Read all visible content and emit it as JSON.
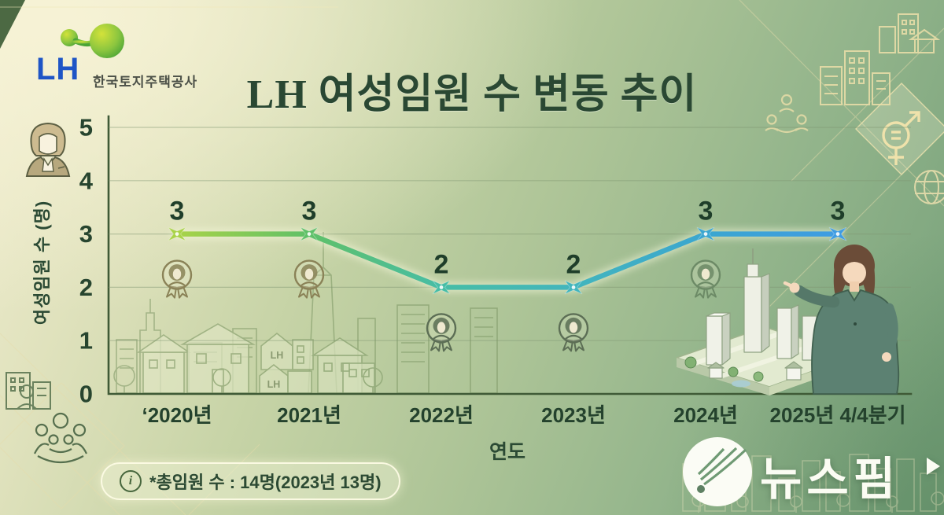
{
  "header": {
    "logo_text": "LH",
    "company_name": "한국토지주택공사",
    "title": "LH 여성임원 수 변동 추이"
  },
  "chart_data": {
    "type": "line",
    "title": "LH 여성임원 수 변동 추이",
    "categories": [
      "‘2020년",
      "2021년",
      "2022년",
      "2023년",
      "2024년",
      "2025년 4/4분기"
    ],
    "values": [
      3,
      3,
      2,
      2,
      3,
      3
    ],
    "xlabel": "연도",
    "ylabel": "여성임원 수 (명)",
    "ylim": [
      0,
      5
    ],
    "yticks": [
      5,
      4,
      3,
      2,
      1,
      0
    ],
    "grid": true,
    "legend": "none",
    "point_colors": [
      "#a9d348",
      "#5fc068",
      "#47bda6",
      "#43b5bd",
      "#3ba6d0",
      "#3f9ce2"
    ],
    "badge_under_points": [
      true,
      true,
      true,
      true,
      true,
      false
    ],
    "badge_colors": [
      "#8a8257",
      "#8a8257",
      "#5c6e55",
      "#5c6e55",
      "#6c8a66"
    ]
  },
  "decor": {
    "house_label": "LH"
  },
  "footnote": {
    "info_glyph": "i",
    "text": "*총임원 수 : 14명(2023년 13명)"
  },
  "watermark": {
    "brand": "뉴스핌"
  }
}
